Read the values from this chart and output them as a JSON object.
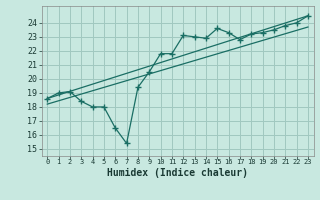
{
  "xlabel": "Humidex (Indice chaleur)",
  "bg_color": "#c8e8e0",
  "grid_color": "#a0c8c0",
  "line_color": "#1a6e64",
  "xlim": [
    -0.5,
    23.5
  ],
  "ylim": [
    14.5,
    25.2
  ],
  "xticks": [
    0,
    1,
    2,
    3,
    4,
    5,
    6,
    7,
    8,
    9,
    10,
    11,
    12,
    13,
    14,
    15,
    16,
    17,
    18,
    19,
    20,
    21,
    22,
    23
  ],
  "yticks": [
    15,
    16,
    17,
    18,
    19,
    20,
    21,
    22,
    23,
    24
  ],
  "scatter_x": [
    0,
    1,
    2,
    3,
    4,
    5,
    6,
    7,
    8,
    9,
    10,
    11,
    12,
    13,
    14,
    15,
    16,
    17,
    18,
    19,
    20,
    21,
    22,
    23
  ],
  "scatter_y": [
    18.6,
    19.0,
    19.1,
    18.4,
    18.0,
    18.0,
    16.5,
    15.4,
    19.4,
    20.5,
    21.8,
    21.8,
    23.1,
    23.0,
    22.9,
    23.6,
    23.3,
    22.8,
    23.2,
    23.3,
    23.5,
    23.8,
    24.0,
    24.5
  ],
  "line1_x": [
    0,
    23
  ],
  "line1_y": [
    18.6,
    24.5
  ],
  "line2_x": [
    0,
    23
  ],
  "line2_y": [
    18.2,
    23.7
  ]
}
